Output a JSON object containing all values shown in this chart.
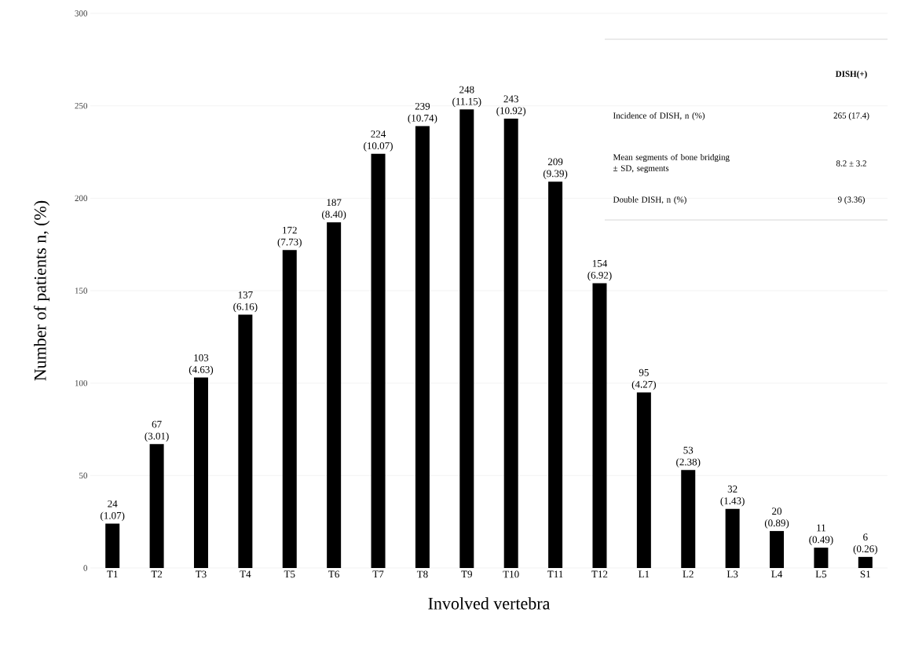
{
  "chart_data": {
    "type": "bar",
    "xlabel": "Involved vertebra",
    "ylabel": "Number of patients     n, (%)",
    "categories": [
      "T1",
      "T2",
      "T3",
      "T4",
      "T5",
      "T6",
      "T7",
      "T8",
      "T9",
      "T10",
      "T11",
      "T12",
      "L1",
      "L2",
      "L3",
      "L4",
      "L5",
      "S1"
    ],
    "values": [
      24,
      67,
      103,
      137,
      172,
      187,
      224,
      239,
      248,
      243,
      209,
      154,
      95,
      53,
      32,
      20,
      11,
      6
    ],
    "value_labels": [
      "24 (1.07)",
      "67 (3.01)",
      "103 (4.63)",
      "137 (6.16)",
      "172 (7.73)",
      "187 (8.40)",
      "224 (10.07)",
      "239 (10.74)",
      "248 (11.15)",
      "243 (10.92)",
      "209 (9.39)",
      "154 (6.92)",
      "95 (4.27)",
      "53 (2.38)",
      "32 (1.43)",
      "20 (0.89)",
      "11 (0.49)",
      "6 (0.26)"
    ],
    "color": "#000000",
    "ylim": [
      0,
      300
    ],
    "yticks": [
      0,
      50,
      100,
      150,
      200,
      250,
      300
    ],
    "grid": "y",
    "annotations": [
      "DISH(+)",
      "Incidence of DISH, n (%)",
      "265 (17.4)",
      "Mean segments of bone bridging ± SD, segments",
      "8.2 ± 3.2",
      "Double DISH,  n (%)",
      "9 (3.36)"
    ]
  }
}
